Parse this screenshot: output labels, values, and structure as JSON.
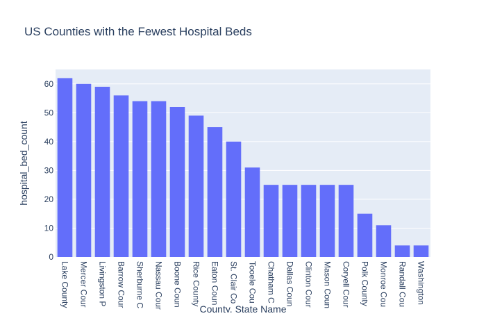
{
  "chart_data": {
    "type": "bar",
    "title": "US Counties with the Fewest Hospital Beds",
    "xlabel": "County, State Name",
    "ylabel": "hospital_bed_count",
    "ylim": [
      0,
      65
    ],
    "yticks": [
      0,
      10,
      20,
      30,
      40,
      50,
      60
    ],
    "grid": true,
    "categories": [
      "Lake County",
      "Mercer Cour",
      "Livingston P",
      "Barrow Cour",
      "Sherburne C",
      "Nassau Cour",
      "Boone Coun",
      "Rice County",
      "Eaton Coun",
      "St. Clair Co",
      "Tooele Cou",
      "Chatham C",
      "Dallas Coun",
      "Clinton Cour",
      "Mason Coun",
      "Coryell Cour",
      "Polk County",
      "Monroe Cou",
      "Randall Cou",
      "Washington"
    ],
    "values": [
      62,
      60,
      59,
      56,
      54,
      54,
      52,
      49,
      45,
      40,
      31,
      25,
      25,
      25,
      25,
      25,
      15,
      11,
      4,
      4
    ],
    "colors": {
      "bar": "#636efa",
      "plot_bg": "#e5ecf6",
      "grid": "#ffffff",
      "text": "#2a3f5f"
    }
  }
}
